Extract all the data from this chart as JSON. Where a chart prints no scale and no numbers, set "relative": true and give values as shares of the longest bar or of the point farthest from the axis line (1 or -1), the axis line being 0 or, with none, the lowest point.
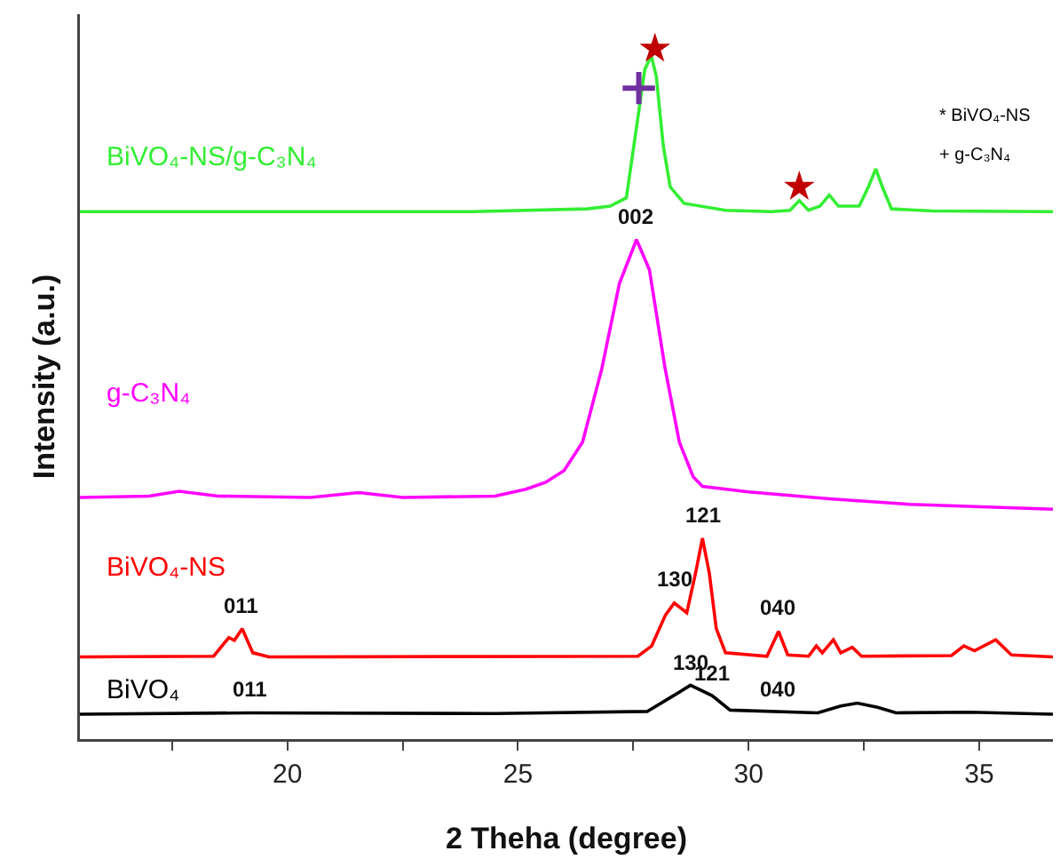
{
  "chart_data": {
    "type": "line",
    "relative": true,
    "xlabel": "2 Theha (degree)",
    "ylabel": "Intensity (a.u.)",
    "xlim": [
      15.5,
      36.6
    ],
    "xticks": [
      {
        "value": 17.5,
        "label": null
      },
      20,
      {
        "value": 22.5,
        "label": null
      },
      25,
      {
        "value": 27.5,
        "label": null
      },
      30,
      {
        "value": 32.5,
        "label": null
      },
      35
    ],
    "grid": false,
    "legend": false,
    "tick_labels": "x",
    "marker": "none",
    "line_style": "solid",
    "series": [
      {
        "name": "BiVO₄-NS/g-C₃N₄",
        "color": "#33ee33",
        "x": [
          15.5,
          20,
          24,
          26.5,
          27.0,
          27.35,
          27.6,
          27.75,
          27.89,
          28.0,
          28.15,
          28.3,
          28.6,
          29.5,
          30.5,
          30.9,
          31.1,
          31.3,
          31.55,
          31.75,
          31.95,
          32.4,
          32.6,
          32.76,
          32.9,
          33.1,
          34,
          36.6
        ],
        "values": [
          0.764,
          0.764,
          0.764,
          0.768,
          0.772,
          0.784,
          0.9,
          0.97,
          0.99,
          0.96,
          0.86,
          0.8,
          0.776,
          0.766,
          0.764,
          0.766,
          0.78,
          0.766,
          0.772,
          0.788,
          0.772,
          0.772,
          0.8,
          0.826,
          0.8,
          0.768,
          0.765,
          0.764
        ]
      },
      {
        "name": "g-C₃N₄",
        "color": "#ff00ff",
        "x": [
          15.5,
          17.0,
          17.65,
          18.5,
          20.5,
          21.55,
          22.5,
          24.5,
          25.17,
          25.6,
          26.0,
          26.4,
          26.82,
          27.2,
          27.57,
          27.85,
          28.19,
          28.5,
          28.8,
          29.0,
          30.0,
          31.75,
          33.5,
          36.6
        ],
        "values": [
          0.35,
          0.352,
          0.359,
          0.352,
          0.35,
          0.357,
          0.35,
          0.352,
          0.362,
          0.372,
          0.389,
          0.43,
          0.537,
          0.66,
          0.7235,
          0.68,
          0.537,
          0.43,
          0.38,
          0.366,
          0.358,
          0.348,
          0.34,
          0.333
        ]
      },
      {
        "name": "BiVO₄-NS",
        "color": "#ff0000",
        "x": [
          15.5,
          18.4,
          18.73,
          18.85,
          19.02,
          19.25,
          19.6,
          27.6,
          27.9,
          28.2,
          28.39,
          28.66,
          28.85,
          29.0,
          29.15,
          29.3,
          29.5,
          30.4,
          30.65,
          30.85,
          31.3,
          31.47,
          31.6,
          31.84,
          32.0,
          32.25,
          32.45,
          34.4,
          34.67,
          34.9,
          35.36,
          35.7,
          36.6
        ],
        "values": [
          0.119,
          0.12,
          0.147,
          0.143,
          0.16,
          0.125,
          0.119,
          0.12,
          0.135,
          0.18,
          0.197,
          0.183,
          0.24,
          0.291,
          0.24,
          0.16,
          0.125,
          0.12,
          0.156,
          0.122,
          0.12,
          0.135,
          0.125,
          0.144,
          0.125,
          0.133,
          0.12,
          0.121,
          0.135,
          0.128,
          0.144,
          0.122,
          0.119
        ]
      },
      {
        "name": "BiVO₄",
        "color": "#000000",
        "x": [
          15.5,
          19.2,
          24.5,
          27.8,
          28.3,
          28.74,
          29.21,
          29.6,
          31.5,
          32.0,
          32.36,
          32.8,
          33.2,
          34.8,
          36.6
        ],
        "values": [
          0.036,
          0.038,
          0.037,
          0.04,
          0.06,
          0.078,
          0.063,
          0.042,
          0.038,
          0.048,
          0.052,
          0.046,
          0.038,
          0.039,
          0.036
        ]
      },
      {
        "type": "scatter",
        "marker": "star",
        "color": "#c00000",
        "x": [
          27.97,
          31.1
        ],
        "values": [
          1.0,
          0.8
        ]
      },
      {
        "type": "scatter",
        "marker": "cross",
        "color": "#7030a0",
        "x": [
          27.62
        ],
        "values": [
          0.943
        ]
      }
    ],
    "annotations": [
      {
        "text": "002",
        "x": 27.57,
        "y": 0.7235
      },
      {
        "text": "011",
        "x": 19.02,
        "y": 0.16
      },
      {
        "text": "130",
        "x": 28.39,
        "y": 0.197
      },
      {
        "text": "121",
        "x": 29.0,
        "y": 0.291
      },
      {
        "text": "040",
        "x": 30.65,
        "y": 0.156
      },
      {
        "text": "011",
        "x": 19.2,
        "y": 0.038
      },
      {
        "text": "130",
        "x": 28.74,
        "y": 0.078
      },
      {
        "text": "121",
        "x": 29.21,
        "y": 0.063
      },
      {
        "text": "040",
        "x": 30.65,
        "y": 0.038
      },
      "* BiVO₄-NS",
      "+ g-C₃N₄"
    ]
  }
}
